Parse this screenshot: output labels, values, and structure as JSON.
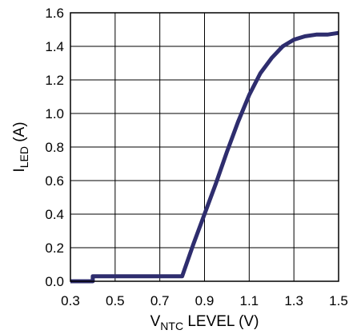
{
  "chart_data": {
    "type": "line",
    "title": "",
    "xlabel": {
      "main": "V",
      "sub": "NTC",
      "rest": " LEVEL (V)"
    },
    "ylabel": {
      "main": "I",
      "sub": "LED",
      "rest": " (A)"
    },
    "xlim": [
      0.3,
      1.5
    ],
    "ylim": [
      0.0,
      1.6
    ],
    "x_ticks": [
      "0.3",
      "0.5",
      "0.7",
      "0.9",
      "1.1",
      "1.3",
      "1.5"
    ],
    "y_ticks": [
      "0.0",
      "0.2",
      "0.4",
      "0.6",
      "0.8",
      "1.0",
      "1.2",
      "1.4",
      "1.6"
    ],
    "grid": true,
    "line_color": "#2e2d6e",
    "series": [
      {
        "x": [
          0.3,
          0.4,
          0.4,
          0.8,
          0.85,
          0.9,
          0.95,
          1.0,
          1.05,
          1.1,
          1.15,
          1.2,
          1.25,
          1.3,
          1.35,
          1.4,
          1.45,
          1.5
        ],
        "y": [
          0.0,
          0.0,
          0.03,
          0.03,
          0.22,
          0.4,
          0.58,
          0.77,
          0.95,
          1.11,
          1.24,
          1.33,
          1.4,
          1.44,
          1.46,
          1.47,
          1.47,
          1.48
        ]
      }
    ]
  }
}
